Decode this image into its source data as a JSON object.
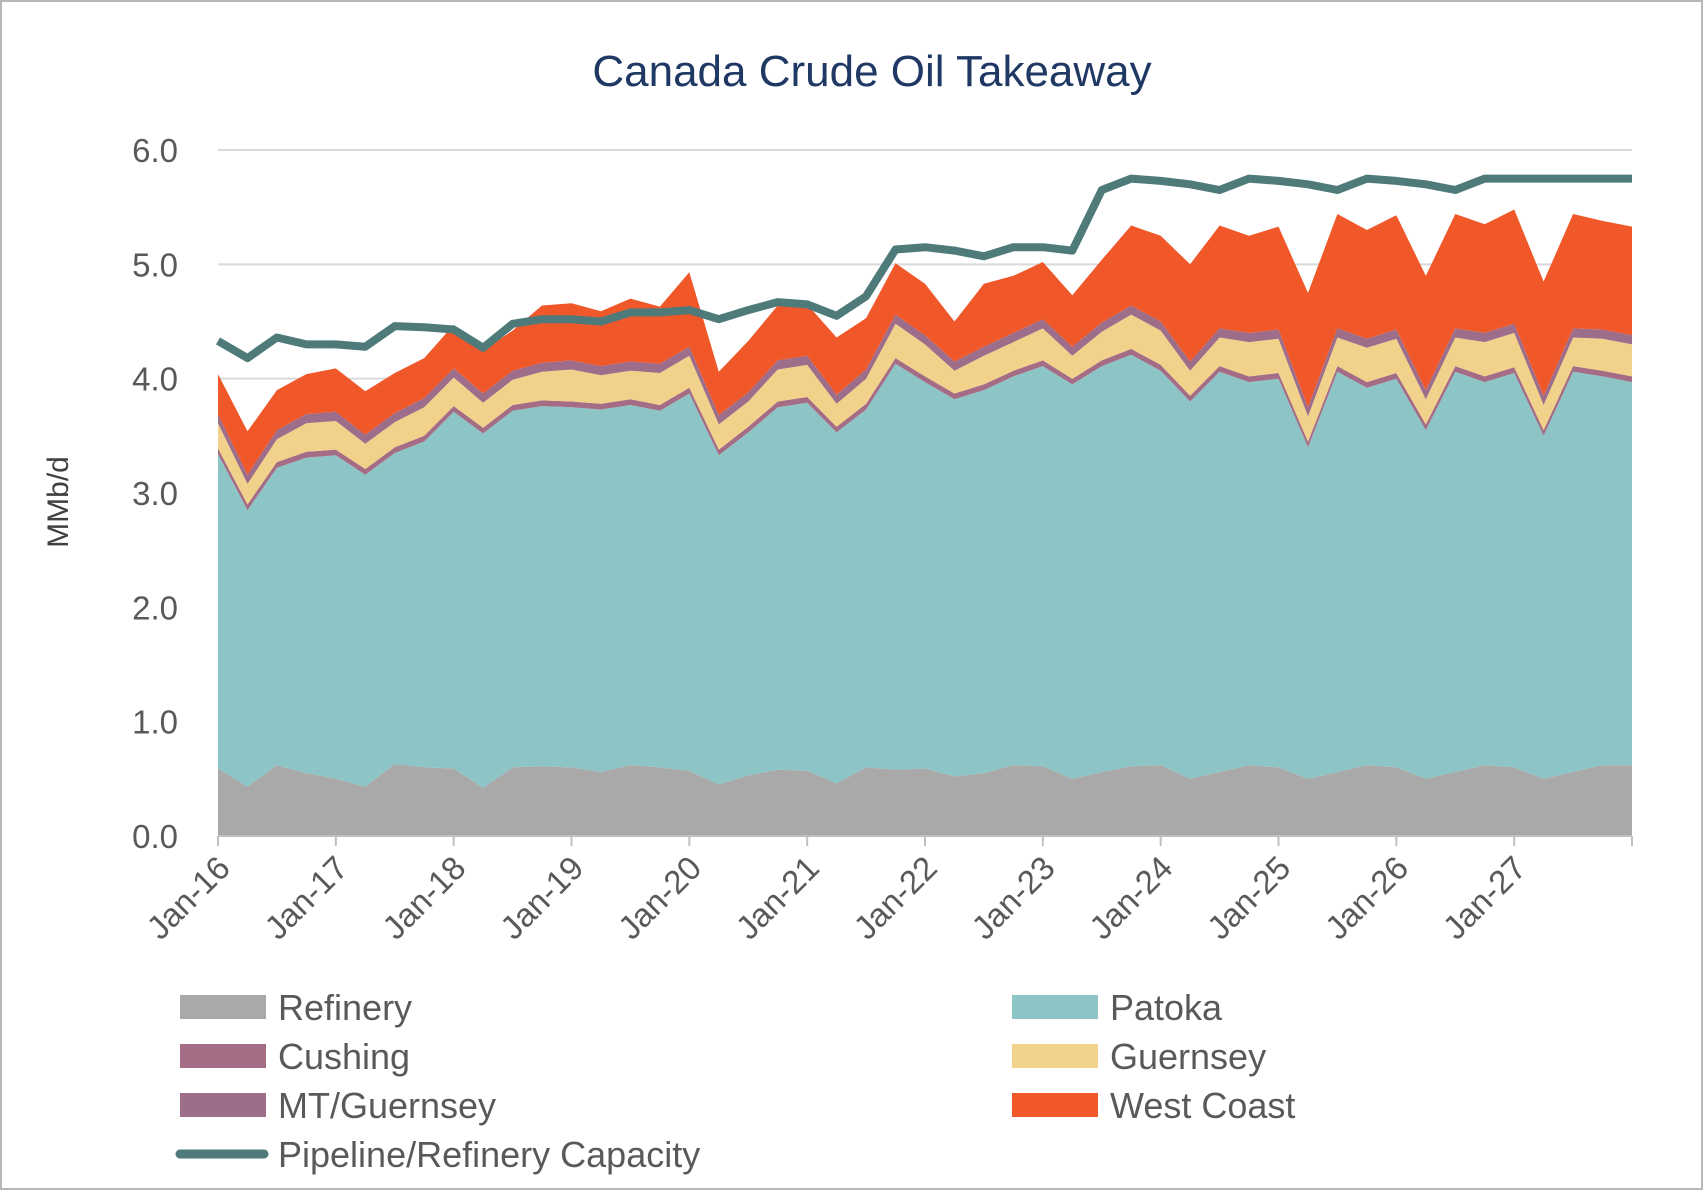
{
  "chart_data": {
    "type": "area",
    "title": "Canada Crude Oil Takeaway",
    "ylabel": "MMb/d",
    "xlabel": "",
    "ylim": [
      0,
      6
    ],
    "y_ticks": [
      "0.0",
      "1.0",
      "2.0",
      "3.0",
      "4.0",
      "5.0",
      "6.0"
    ],
    "x_ticks": [
      "Jan-16",
      "Jan-17",
      "Jan-18",
      "Jan-19",
      "Jan-20",
      "Jan-21",
      "Jan-22",
      "Jan-23",
      "Jan-24",
      "Jan-25",
      "Jan-26",
      "Jan-27"
    ],
    "x_range": [
      "Jan-16",
      "Dec-27"
    ],
    "gridlines": true,
    "legend_position": "bottom",
    "colors": {
      "Refinery": "#a9a9a9",
      "Patoka": "#8dc4c6",
      "Cushing": "#a56d85",
      "Guernsey": "#f2d28b",
      "MT/Guernsey": "#9e6d8a",
      "West Coast": "#f0582a",
      "Pipeline/Refinery Capacity": "#4e7a7a"
    },
    "legend": [
      {
        "name": "Refinery",
        "kind": "area"
      },
      {
        "name": "Patoka",
        "kind": "area"
      },
      {
        "name": "Cushing",
        "kind": "area"
      },
      {
        "name": "Guernsey",
        "kind": "area"
      },
      {
        "name": "MT/Guernsey",
        "kind": "area"
      },
      {
        "name": "West Coast",
        "kind": "area"
      },
      {
        "name": "Pipeline/Refinery Capacity",
        "kind": "line"
      }
    ],
    "x": [
      "Jan-16",
      "Apr-16",
      "Jul-16",
      "Oct-16",
      "Jan-17",
      "Apr-17",
      "Jul-17",
      "Oct-17",
      "Jan-18",
      "Apr-18",
      "Jul-18",
      "Oct-18",
      "Jan-19",
      "Apr-19",
      "Jul-19",
      "Oct-19",
      "Jan-20",
      "Apr-20",
      "Jul-20",
      "Oct-20",
      "Jan-21",
      "Apr-21",
      "Jul-21",
      "Oct-21",
      "Jan-22",
      "Apr-22",
      "Jul-22",
      "Oct-22",
      "Jan-23",
      "Apr-23",
      "Jul-23",
      "Oct-23",
      "Jan-24",
      "Apr-24",
      "Jul-24",
      "Oct-24",
      "Jan-25",
      "Apr-25",
      "Jul-25",
      "Oct-25",
      "Jan-26",
      "Apr-26",
      "Jul-26",
      "Oct-26",
      "Jan-27",
      "Apr-27",
      "Jul-27",
      "Oct-27",
      "Dec-27"
    ],
    "series": [
      {
        "name": "Refinery",
        "kind": "area",
        "values": [
          0.59,
          0.43,
          0.62,
          0.55,
          0.5,
          0.43,
          0.63,
          0.6,
          0.59,
          0.42,
          0.6,
          0.61,
          0.6,
          0.56,
          0.62,
          0.6,
          0.57,
          0.45,
          0.53,
          0.58,
          0.57,
          0.46,
          0.6,
          0.58,
          0.59,
          0.52,
          0.55,
          0.62,
          0.61,
          0.5,
          0.56,
          0.61,
          0.62,
          0.5,
          0.56,
          0.62,
          0.6,
          0.5,
          0.56,
          0.62,
          0.6,
          0.5,
          0.56,
          0.62,
          0.6,
          0.5,
          0.56,
          0.62,
          0.62
        ]
      },
      {
        "name": "Patoka",
        "kind": "area",
        "values": [
          2.75,
          2.42,
          2.6,
          2.76,
          2.83,
          2.73,
          2.72,
          2.85,
          3.12,
          3.1,
          3.12,
          3.15,
          3.15,
          3.17,
          3.15,
          3.12,
          3.3,
          2.88,
          3.0,
          3.17,
          3.22,
          3.07,
          3.13,
          3.55,
          3.38,
          3.3,
          3.35,
          3.4,
          3.5,
          3.45,
          3.55,
          3.6,
          3.45,
          3.3,
          3.5,
          3.35,
          3.4,
          2.9,
          3.5,
          3.3,
          3.4,
          3.05,
          3.5,
          3.35,
          3.45,
          3.0,
          3.5,
          3.4,
          3.35
        ]
      },
      {
        "name": "Cushing",
        "kind": "area",
        "values": [
          0.05,
          0.05,
          0.05,
          0.05,
          0.05,
          0.05,
          0.05,
          0.05,
          0.05,
          0.05,
          0.05,
          0.05,
          0.05,
          0.05,
          0.05,
          0.05,
          0.05,
          0.05,
          0.05,
          0.05,
          0.05,
          0.05,
          0.05,
          0.05,
          0.05,
          0.05,
          0.05,
          0.05,
          0.05,
          0.05,
          0.05,
          0.05,
          0.05,
          0.05,
          0.05,
          0.05,
          0.05,
          0.05,
          0.05,
          0.05,
          0.05,
          0.05,
          0.05,
          0.05,
          0.05,
          0.05,
          0.05,
          0.05,
          0.05
        ]
      },
      {
        "name": "Guernsey",
        "kind": "area",
        "values": [
          0.22,
          0.18,
          0.2,
          0.25,
          0.25,
          0.22,
          0.22,
          0.25,
          0.25,
          0.22,
          0.22,
          0.25,
          0.28,
          0.25,
          0.25,
          0.28,
          0.28,
          0.22,
          0.22,
          0.28,
          0.28,
          0.2,
          0.22,
          0.3,
          0.28,
          0.2,
          0.25,
          0.25,
          0.28,
          0.2,
          0.25,
          0.3,
          0.3,
          0.22,
          0.25,
          0.3,
          0.3,
          0.22,
          0.25,
          0.3,
          0.3,
          0.22,
          0.25,
          0.3,
          0.3,
          0.22,
          0.25,
          0.28,
          0.28
        ]
      },
      {
        "name": "MT/Guernsey",
        "kind": "area",
        "values": [
          0.08,
          0.08,
          0.08,
          0.08,
          0.08,
          0.08,
          0.08,
          0.08,
          0.08,
          0.08,
          0.08,
          0.08,
          0.08,
          0.08,
          0.08,
          0.08,
          0.08,
          0.08,
          0.08,
          0.08,
          0.08,
          0.08,
          0.08,
          0.08,
          0.08,
          0.08,
          0.08,
          0.08,
          0.08,
          0.08,
          0.08,
          0.08,
          0.08,
          0.08,
          0.08,
          0.08,
          0.08,
          0.08,
          0.08,
          0.08,
          0.08,
          0.08,
          0.08,
          0.08,
          0.08,
          0.08,
          0.08,
          0.08,
          0.08
        ]
      },
      {
        "name": "West Coast",
        "kind": "area",
        "values": [
          0.35,
          0.38,
          0.35,
          0.35,
          0.38,
          0.38,
          0.35,
          0.35,
          0.38,
          0.38,
          0.35,
          0.5,
          0.5,
          0.48,
          0.55,
          0.5,
          0.65,
          0.38,
          0.45,
          0.48,
          0.45,
          0.5,
          0.45,
          0.45,
          0.45,
          0.35,
          0.55,
          0.5,
          0.5,
          0.45,
          0.55,
          0.7,
          0.75,
          0.85,
          0.9,
          0.85,
          0.9,
          1.0,
          1.0,
          0.95,
          1.0,
          1.0,
          1.0,
          0.95,
          1.0,
          1.0,
          1.0,
          0.95,
          0.95
        ]
      },
      {
        "name": "Pipeline/Refinery Capacity",
        "kind": "line",
        "values": [
          4.33,
          4.18,
          4.36,
          4.3,
          4.3,
          4.28,
          4.46,
          4.45,
          4.43,
          4.27,
          4.48,
          4.52,
          4.52,
          4.5,
          4.58,
          4.58,
          4.6,
          4.52,
          4.6,
          4.67,
          4.65,
          4.55,
          4.72,
          5.13,
          5.15,
          5.12,
          5.07,
          5.15,
          5.15,
          5.12,
          5.65,
          5.75,
          5.73,
          5.7,
          5.65,
          5.75,
          5.73,
          5.7,
          5.65,
          5.75,
          5.73,
          5.7,
          5.65,
          5.75,
          5.75,
          5.75,
          5.75,
          5.75,
          5.75
        ]
      }
    ]
  }
}
